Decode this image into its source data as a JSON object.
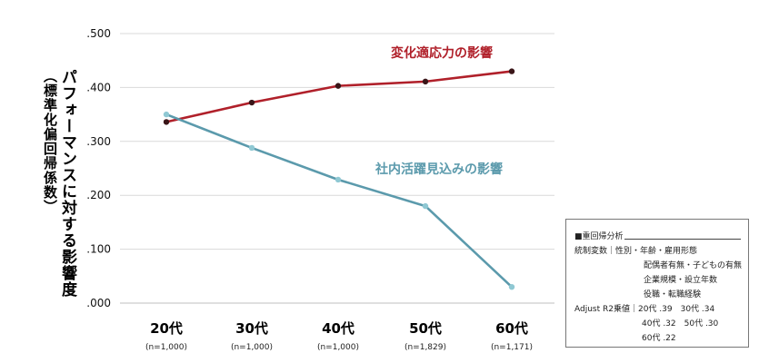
{
  "chart_data": {
    "type": "line",
    "ylabel": "パフォーマンスに対する影響度",
    "ylabel_sub": "（標準化偏回帰係数）",
    "ylim": [
      0,
      0.5
    ],
    "yticks": [
      ".000",
      ".100",
      ".200",
      ".300",
      ".400",
      ".500"
    ],
    "ytick_values": [
      0,
      0.1,
      0.2,
      0.3,
      0.4,
      0.5
    ],
    "grid": true,
    "categories": [
      "20代",
      "30代",
      "40代",
      "50代",
      "60代"
    ],
    "category_sublabels": [
      "(n=1,000)",
      "(n=1,000)",
      "(n=1,000)",
      "(n=1,829)",
      "(n=1,171)"
    ],
    "series": [
      {
        "name": "変化適応力の影響",
        "color": "#b0202a",
        "marker": "#3a1518",
        "values": [
          0.336,
          0.372,
          0.403,
          0.411,
          0.43
        ]
      },
      {
        "name": "社内活躍見込みの影響",
        "color": "#5b9aac",
        "marker": "#8fc8d3",
        "values": [
          0.35,
          0.288,
          0.229,
          0.18,
          0.03
        ]
      }
    ]
  },
  "regression_box": {
    "title": "■重回帰分析",
    "line1": "統制変数｜性別・年齢・雇用形態",
    "line2": "配偶者有無・子どもの有無",
    "line3": "企業規模・設立年数",
    "line4": "役職・転職経験",
    "line5": "Adjust R2乗値｜20代 .39　30代 .34",
    "line6": "40代 .32　50代 .30",
    "line7": "60代 .22"
  }
}
